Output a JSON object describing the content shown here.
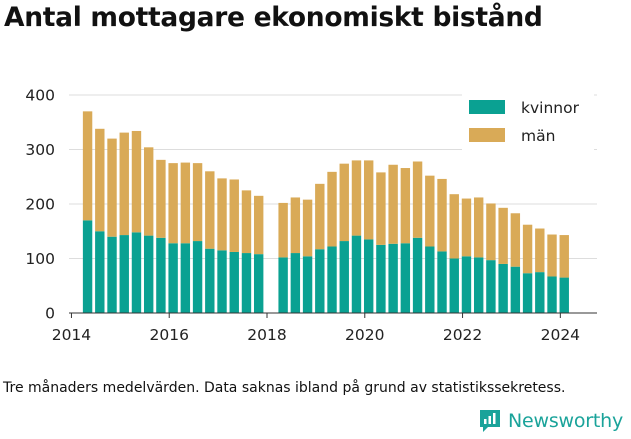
{
  "title": "Antal mottagare ekonomiskt bistånd",
  "caption": "Tre månaders medelvärden. Data saknas ibland på grund av statistikssekretess.",
  "brand": "Newsworthy",
  "colors": {
    "kvinnor": "#0aa192",
    "man": "#d9aa57",
    "brand": "#1aa39a"
  },
  "chart_data": {
    "type": "bar",
    "stacked": true,
    "legend_position": "top-right",
    "grid": "horizontal",
    "x_ticks": [
      "2014",
      "2016",
      "2018",
      "2020",
      "2022",
      "2024"
    ],
    "y_ticks": [
      "0",
      "100",
      "200",
      "300",
      "400"
    ],
    "xlim": [
      2014,
      2024.75
    ],
    "ylim": [
      0,
      400
    ],
    "x": [
      2014.33,
      2014.58,
      2014.83,
      2015.08,
      2015.33,
      2015.58,
      2015.83,
      2016.08,
      2016.33,
      2016.58,
      2016.83,
      2017.08,
      2017.33,
      2017.58,
      2017.83,
      2018.33,
      2018.58,
      2018.83,
      2019.08,
      2019.33,
      2019.58,
      2019.83,
      2020.08,
      2020.33,
      2020.58,
      2020.83,
      2021.08,
      2021.33,
      2021.58,
      2021.83,
      2022.08,
      2022.33,
      2022.58,
      2022.83,
      2023.08,
      2023.33,
      2023.58,
      2023.83,
      2024.08
    ],
    "series": [
      {
        "name": "kvinnor",
        "values": [
          170,
          150,
          140,
          143,
          148,
          142,
          138,
          128,
          128,
          132,
          118,
          115,
          112,
          110,
          108,
          102,
          110,
          104,
          117,
          122,
          132,
          142,
          135,
          125,
          127,
          128,
          138,
          122,
          113,
          100,
          104,
          102,
          97,
          90,
          85,
          73,
          75,
          67,
          65
        ]
      },
      {
        "name": "män",
        "values": [
          200,
          188,
          180,
          188,
          186,
          162,
          143,
          147,
          148,
          143,
          142,
          132,
          133,
          115,
          107,
          100,
          102,
          104,
          120,
          137,
          142,
          138,
          145,
          133,
          145,
          138,
          140,
          130,
          133,
          118,
          106,
          110,
          104,
          103,
          98,
          89,
          80,
          77,
          78
        ]
      }
    ]
  }
}
